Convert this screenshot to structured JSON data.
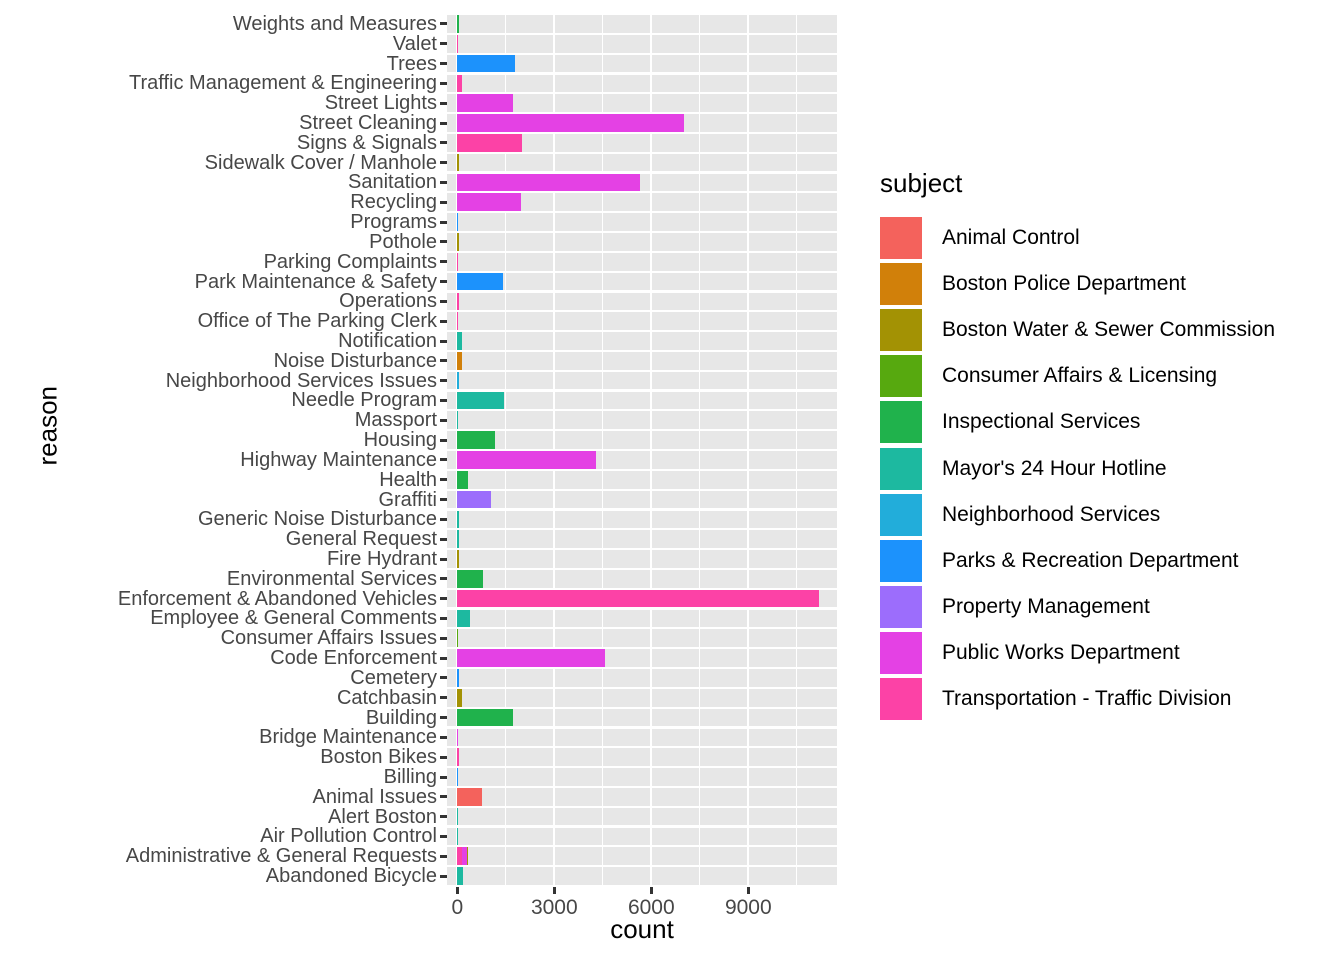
{
  "chart_data": {
    "type": "bar",
    "orientation": "horizontal",
    "xlabel": "count",
    "ylabel": "reason",
    "legend_title": "subject",
    "legend_position": "right",
    "x_ticks": [
      0,
      3000,
      6000,
      9000
    ],
    "x_minor_gridlines": [
      1500,
      4500,
      7500,
      10500
    ],
    "xlim": [
      0,
      11720
    ],
    "panel_bg": "#E7E7E7",
    "grid_color": "#FFFFFF",
    "tick_color": "#333333",
    "axis_text_color": "#474747",
    "subjects": [
      {
        "name": "Animal Control",
        "color": "#F4625C"
      },
      {
        "name": "Boston Police Department",
        "color": "#D1800A"
      },
      {
        "name": "Boston Water & Sewer Commission",
        "color": "#A39204"
      },
      {
        "name": "Consumer Affairs & Licensing",
        "color": "#57A90F"
      },
      {
        "name": "Inspectional Services",
        "color": "#20B24C"
      },
      {
        "name": "Mayor's 24 Hour Hotline",
        "color": "#1DB9A0"
      },
      {
        "name": "Neighborhood Services",
        "color": "#22ADDA"
      },
      {
        "name": "Parks & Recreation Department",
        "color": "#1C92FC"
      },
      {
        "name": "Property Management",
        "color": "#9C6DFC"
      },
      {
        "name": "Public Works Department",
        "color": "#E441E4"
      },
      {
        "name": "Transportation - Traffic Division",
        "color": "#FC42A6"
      }
    ],
    "rows": [
      {
        "reason": "Weights and Measures",
        "segments": [
          {
            "subject": "Inspectional Services",
            "count": 40
          }
        ]
      },
      {
        "reason": "Valet",
        "segments": [
          {
            "subject": "Transportation - Traffic Division",
            "count": 8
          }
        ]
      },
      {
        "reason": "Trees",
        "segments": [
          {
            "subject": "Parks & Recreation Department",
            "count": 1790
          }
        ]
      },
      {
        "reason": "Traffic Management & Engineering",
        "segments": [
          {
            "subject": "Transportation - Traffic Division",
            "count": 150
          }
        ]
      },
      {
        "reason": "Street Lights",
        "segments": [
          {
            "subject": "Public Works Department",
            "count": 1730
          }
        ]
      },
      {
        "reason": "Street Cleaning",
        "segments": [
          {
            "subject": "Public Works Department",
            "count": 7000
          }
        ]
      },
      {
        "reason": "Signs & Signals",
        "segments": [
          {
            "subject": "Transportation - Traffic Division",
            "count": 1990
          }
        ]
      },
      {
        "reason": "Sidewalk Cover / Manhole",
        "segments": [
          {
            "subject": "Boston Water & Sewer Commission",
            "count": 60
          }
        ]
      },
      {
        "reason": "Sanitation",
        "segments": [
          {
            "subject": "Public Works Department",
            "count": 5650
          }
        ]
      },
      {
        "reason": "Recycling",
        "segments": [
          {
            "subject": "Public Works Department",
            "count": 1960
          }
        ]
      },
      {
        "reason": "Programs",
        "segments": [
          {
            "subject": "Parks & Recreation Department",
            "count": 10
          }
        ]
      },
      {
        "reason": "Pothole",
        "segments": [
          {
            "subject": "Boston Water & Sewer Commission",
            "count": 45
          }
        ]
      },
      {
        "reason": "Parking Complaints",
        "segments": [
          {
            "subject": "Transportation - Traffic Division",
            "count": 8
          }
        ]
      },
      {
        "reason": "Park Maintenance & Safety",
        "segments": [
          {
            "subject": "Parks & Recreation Department",
            "count": 1400
          }
        ]
      },
      {
        "reason": "Operations",
        "segments": [
          {
            "subject": "Transportation - Traffic Division",
            "count": 60
          }
        ]
      },
      {
        "reason": "Office of The Parking Clerk",
        "segments": [
          {
            "subject": "Transportation - Traffic Division",
            "count": 8
          }
        ]
      },
      {
        "reason": "Notification",
        "segments": [
          {
            "subject": "Mayor's 24 Hour Hotline",
            "count": 140
          }
        ]
      },
      {
        "reason": "Noise Disturbance",
        "segments": [
          {
            "subject": "Boston Police Department",
            "count": 130
          }
        ]
      },
      {
        "reason": "Neighborhood Services Issues",
        "segments": [
          {
            "subject": "Neighborhood Services",
            "count": 45
          }
        ]
      },
      {
        "reason": "Needle Program",
        "segments": [
          {
            "subject": "Mayor's 24 Hour Hotline",
            "count": 1440
          }
        ]
      },
      {
        "reason": "Massport",
        "segments": [
          {
            "subject": "Mayor's 24 Hour Hotline",
            "count": 30
          }
        ]
      },
      {
        "reason": "Housing",
        "segments": [
          {
            "subject": "Inspectional Services",
            "count": 1180
          }
        ]
      },
      {
        "reason": "Highway Maintenance",
        "segments": [
          {
            "subject": "Public Works Department",
            "count": 4290
          }
        ]
      },
      {
        "reason": "Health",
        "segments": [
          {
            "subject": "Inspectional Services",
            "count": 340
          }
        ]
      },
      {
        "reason": "Graffiti",
        "segments": [
          {
            "subject": "Property Management",
            "count": 1040
          }
        ]
      },
      {
        "reason": "Generic Noise Disturbance",
        "segments": [
          {
            "subject": "Mayor's 24 Hour Hotline",
            "count": 60
          }
        ]
      },
      {
        "reason": "General Request",
        "segments": [
          {
            "subject": "Mayor's 24 Hour Hotline",
            "count": 40
          }
        ]
      },
      {
        "reason": "Fire Hydrant",
        "segments": [
          {
            "subject": "Boston Water & Sewer Commission",
            "count": 45
          }
        ]
      },
      {
        "reason": "Environmental Services",
        "segments": [
          {
            "subject": "Inspectional Services",
            "count": 800
          }
        ]
      },
      {
        "reason": "Enforcement & Abandoned Vehicles",
        "segments": [
          {
            "subject": "Transportation - Traffic Division",
            "count": 11190
          }
        ]
      },
      {
        "reason": "Employee & General Comments",
        "segments": [
          {
            "subject": "Mayor's 24 Hour Hotline",
            "count": 390
          }
        ]
      },
      {
        "reason": "Consumer Affairs Issues",
        "segments": [
          {
            "subject": "Consumer Affairs & Licensing",
            "count": 8
          }
        ]
      },
      {
        "reason": "Code Enforcement",
        "segments": [
          {
            "subject": "Public Works Department",
            "count": 4560
          }
        ]
      },
      {
        "reason": "Cemetery",
        "segments": [
          {
            "subject": "Parks & Recreation Department",
            "count": 40
          }
        ]
      },
      {
        "reason": "Catchbasin",
        "segments": [
          {
            "subject": "Boston Water & Sewer Commission",
            "count": 130
          }
        ]
      },
      {
        "reason": "Building",
        "segments": [
          {
            "subject": "Inspectional Services",
            "count": 1720
          }
        ]
      },
      {
        "reason": "Bridge Maintenance",
        "segments": [
          {
            "subject": "Public Works Department",
            "count": 15
          }
        ]
      },
      {
        "reason": "Boston Bikes",
        "segments": [
          {
            "subject": "Transportation - Traffic Division",
            "count": 45
          }
        ]
      },
      {
        "reason": "Billing",
        "segments": [
          {
            "subject": "Parks & Recreation Department",
            "count": 5
          }
        ]
      },
      {
        "reason": "Animal Issues",
        "segments": [
          {
            "subject": "Animal Control",
            "count": 750
          }
        ]
      },
      {
        "reason": "Alert Boston",
        "segments": [
          {
            "subject": "Mayor's 24 Hour Hotline",
            "count": 5
          }
        ]
      },
      {
        "reason": "Air Pollution Control",
        "segments": [
          {
            "subject": "Mayor's 24 Hour Hotline",
            "count": 30
          }
        ]
      },
      {
        "reason": "Administrative & General Requests",
        "segments": [
          {
            "subject": "Transportation - Traffic Division",
            "count": 160
          },
          {
            "subject": "Public Works Department",
            "count": 130
          },
          {
            "subject": "Boston Water & Sewer Commission",
            "count": 30
          }
        ]
      },
      {
        "reason": "Abandoned Bicycle",
        "segments": [
          {
            "subject": "Mayor's 24 Hour Hotline",
            "count": 190
          }
        ]
      }
    ]
  }
}
